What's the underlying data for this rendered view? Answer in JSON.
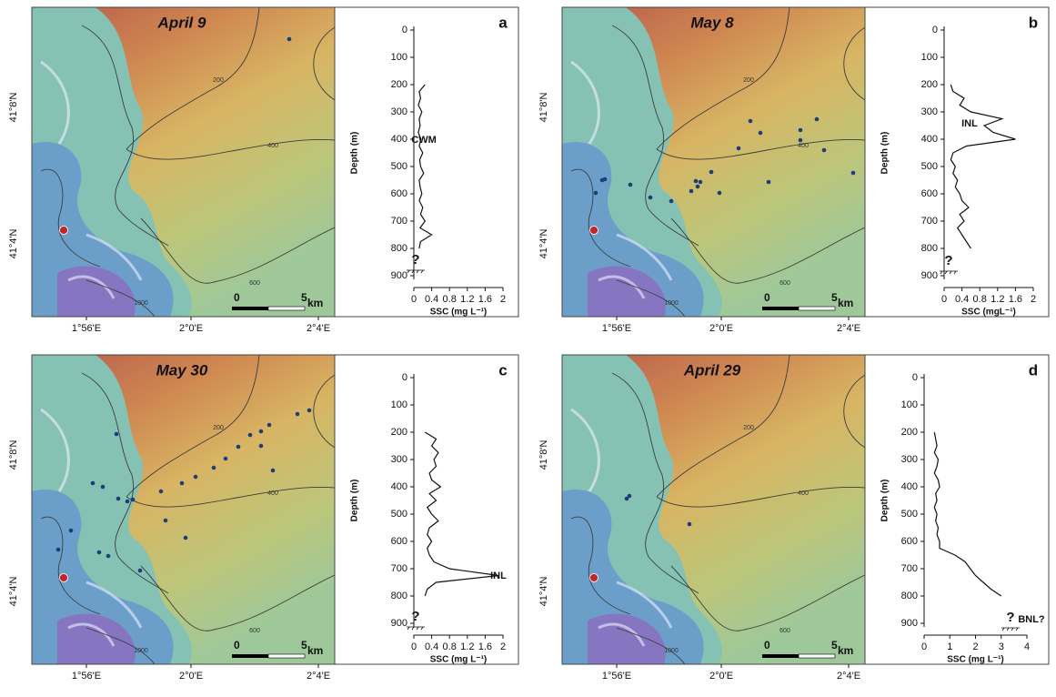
{
  "chart_data": [
    {
      "type": "line",
      "panel": "a",
      "map": {
        "title": "April 9",
        "lat_labels": [
          "41°8'N",
          "41°4'N"
        ],
        "lon_labels": [
          "1°56'E",
          "2°0'E",
          "2°4'E"
        ],
        "contour_labels": [
          "200",
          "400",
          "600",
          "1000"
        ],
        "scale_labels": [
          "0",
          "5",
          "km"
        ]
      },
      "xlabel": "SSC (mg L⁻¹)",
      "ylabel": "Depth (m)",
      "y_inverted": true,
      "color": "#111111",
      "xlim": [
        0,
        2
      ],
      "xticks": [
        0,
        0.4,
        0.8,
        1.2,
        1.6,
        2
      ],
      "ylim": [
        0,
        900
      ],
      "yticks": [
        0,
        100,
        200,
        300,
        400,
        500,
        600,
        700,
        800,
        900
      ],
      "annotations": [
        "?",
        "CWM"
      ],
      "depths": [
        200,
        225,
        250,
        275,
        300,
        325,
        350,
        375,
        400,
        425,
        450,
        475,
        500,
        525,
        550,
        575,
        600,
        625,
        650,
        675,
        700,
        725,
        750,
        775,
        800
      ],
      "values": [
        0.25,
        0.12,
        0.15,
        0.1,
        0.18,
        0.12,
        0.14,
        0.1,
        0.16,
        0.12,
        0.2,
        0.13,
        0.15,
        0.22,
        0.12,
        0.14,
        0.18,
        0.12,
        0.2,
        0.15,
        0.25,
        0.14,
        0.4,
        0.15,
        0.12
      ]
    },
    {
      "type": "line",
      "panel": "b",
      "map": {
        "title": "May 8",
        "lat_labels": [
          "41°8'N",
          "41°4'N"
        ],
        "lon_labels": [
          "1°56'E",
          "2°0'E",
          "2°4'E"
        ],
        "contour_labels": [
          "200",
          "400",
          "600",
          "1000"
        ],
        "scale_labels": [
          "0",
          "5",
          "km"
        ]
      },
      "xlabel": "SSC (mgL⁻¹)",
      "ylabel": "Depth (m)",
      "y_inverted": true,
      "color": "#111111",
      "xlim": [
        0,
        2
      ],
      "xticks": [
        0,
        0.4,
        0.8,
        1.2,
        1.6,
        2
      ],
      "ylim": [
        0,
        900
      ],
      "yticks": [
        0,
        100,
        200,
        300,
        400,
        500,
        600,
        700,
        800,
        900
      ],
      "annotations": [
        "?",
        "INL"
      ],
      "depths": [
        200,
        225,
        250,
        275,
        300,
        325,
        350,
        375,
        400,
        425,
        450,
        475,
        500,
        525,
        550,
        575,
        600,
        625,
        650,
        675,
        700,
        725,
        750,
        775,
        800
      ],
      "values": [
        0.15,
        0.2,
        0.45,
        0.35,
        0.6,
        1.3,
        0.9,
        1.1,
        1.6,
        0.5,
        0.2,
        0.15,
        0.25,
        0.2,
        0.3,
        0.25,
        0.35,
        0.4,
        0.55,
        0.35,
        0.45,
        0.3,
        0.4,
        0.5,
        0.6
      ]
    },
    {
      "type": "line",
      "panel": "c",
      "map": {
        "title": "May 30",
        "lat_labels": [
          "41°8'N",
          "41°4'N"
        ],
        "lon_labels": [
          "1°56'E",
          "2°0'E",
          "2°4'E"
        ],
        "contour_labels": [
          "200",
          "400",
          "600",
          "1000"
        ],
        "scale_labels": [
          "0",
          "5",
          "km"
        ]
      },
      "xlabel": "SSC (mg L⁻¹)",
      "ylabel": "Depth (m)",
      "y_inverted": true,
      "color": "#111111",
      "xlim": [
        0,
        2
      ],
      "xticks": [
        0,
        0.4,
        0.8,
        1.2,
        1.6,
        2
      ],
      "ylim": [
        0,
        900
      ],
      "yticks": [
        0,
        100,
        200,
        300,
        400,
        500,
        600,
        700,
        800,
        900
      ],
      "annotations": [
        "?",
        "INL"
      ],
      "depths": [
        200,
        225,
        250,
        275,
        300,
        325,
        350,
        375,
        400,
        425,
        450,
        475,
        500,
        525,
        550,
        575,
        600,
        625,
        650,
        675,
        700,
        725,
        750,
        775,
        800
      ],
      "values": [
        0.25,
        0.5,
        0.4,
        0.55,
        0.45,
        0.5,
        0.35,
        0.4,
        0.6,
        0.35,
        0.5,
        0.3,
        0.4,
        0.55,
        0.35,
        0.3,
        0.4,
        0.3,
        0.35,
        0.45,
        0.8,
        1.9,
        0.5,
        0.3,
        0.25
      ]
    },
    {
      "type": "line",
      "panel": "d",
      "map": {
        "title": "April 29",
        "lat_labels": [
          "41°8'N",
          "41°4'N"
        ],
        "lon_labels": [
          "1°56'E",
          "2°0'E",
          "2°4'E"
        ],
        "contour_labels": [
          "200",
          "400",
          "600",
          "1000"
        ],
        "scale_labels": [
          "0",
          "5",
          "km"
        ]
      },
      "xlabel": "SSC (mg L⁻¹)",
      "ylabel": "Depth (m)",
      "y_inverted": true,
      "color": "#111111",
      "xlim": [
        0,
        4
      ],
      "xticks": [
        0,
        1,
        2,
        3,
        4
      ],
      "ylim": [
        0,
        900
      ],
      "yticks": [
        0,
        100,
        200,
        300,
        400,
        500,
        600,
        700,
        800,
        900
      ],
      "annotations": [
        "?",
        "BNL?"
      ],
      "depths": [
        200,
        225,
        250,
        275,
        300,
        325,
        350,
        375,
        400,
        425,
        450,
        475,
        500,
        525,
        550,
        575,
        600,
        625,
        650,
        675,
        700,
        725,
        750,
        775,
        800
      ],
      "values": [
        0.4,
        0.45,
        0.5,
        0.4,
        0.55,
        0.5,
        0.4,
        0.55,
        0.6,
        0.45,
        0.5,
        0.4,
        0.5,
        0.45,
        0.55,
        0.5,
        0.6,
        0.6,
        1.2,
        1.6,
        1.8,
        2.0,
        2.3,
        2.6,
        3.0
      ]
    }
  ]
}
